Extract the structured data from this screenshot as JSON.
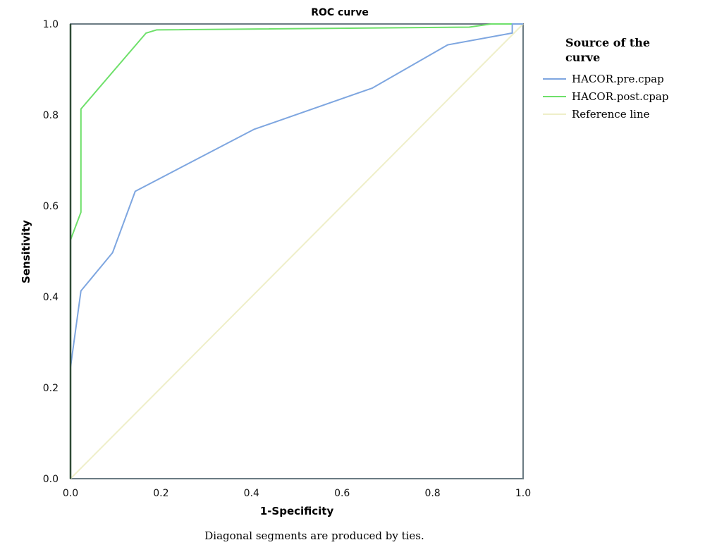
{
  "chart_data": {
    "type": "line",
    "title": "ROC curve",
    "xlabel": "1-Specificity",
    "ylabel": "Sensitivity",
    "xlim": [
      0,
      1
    ],
    "ylim": [
      0,
      1
    ],
    "x_ticks": [
      "0.0",
      "0.2",
      "0.4",
      "0.6",
      "0.8",
      "1.0"
    ],
    "y_ticks": [
      "0.0",
      "0.2",
      "0.4",
      "0.6",
      "0.8",
      "1.0"
    ],
    "legend_title": "Source of the curve",
    "legend_position": "right",
    "grid": false,
    "footnote": "Diagonal segments are produced by ties.",
    "series": [
      {
        "name": "HACOR.pre.cpap",
        "color": "#7ea6e0",
        "x": [
          0.0,
          0.0,
          0.023,
          0.093,
          0.143,
          0.405,
          0.667,
          0.833,
          0.976,
          0.976,
          1.0
        ],
        "y": [
          0.0,
          0.245,
          0.413,
          0.497,
          0.632,
          0.768,
          0.859,
          0.954,
          0.98,
          1.0,
          1.0
        ]
      },
      {
        "name": "HACOR.post.cpap",
        "color": "#6ee06a",
        "x": [
          0.0,
          0.0,
          0.023,
          0.023,
          0.167,
          0.19,
          0.881,
          0.929,
          1.0
        ],
        "y": [
          0.0,
          0.525,
          0.586,
          0.813,
          0.98,
          0.987,
          0.993,
          1.0,
          1.0
        ]
      },
      {
        "name": "Reference line",
        "color": "#efefc9",
        "x": [
          0.0,
          1.0
        ],
        "y": [
          0.0,
          1.0
        ]
      }
    ]
  }
}
